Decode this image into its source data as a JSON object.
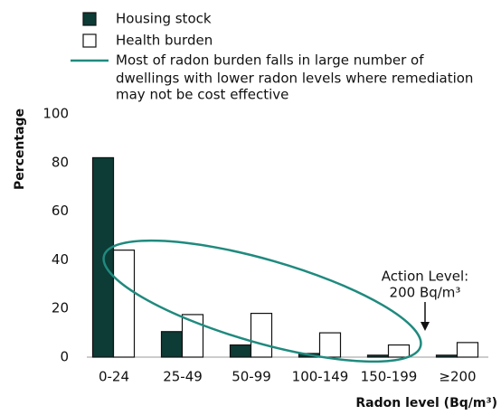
{
  "chart_data": {
    "type": "bar",
    "categories": [
      "0-24",
      "25-49",
      "50-99",
      "100-149",
      "150-199",
      "≥200"
    ],
    "series": [
      {
        "name": "Housing stock",
        "color": "#0d3b36",
        "values": [
          82,
          10.5,
          5,
          1.5,
          0.8,
          0.8
        ]
      },
      {
        "name": "Health burden",
        "color": "#ffffff",
        "values": [
          44,
          17.5,
          18,
          10,
          5,
          6
        ]
      }
    ],
    "ellipse_note": [
      "Most of radon burden falls in large number of",
      "dwellings with lower radon levels where remediation",
      "may not be cost effective"
    ],
    "annotation": [
      "Action Level:",
      "200 Bq/m³"
    ],
    "xlabel": "Radon level (Bq/m³)",
    "ylabel": "Percentage",
    "ylim": [
      0,
      100
    ],
    "yticks": [
      0,
      20,
      40,
      60,
      80,
      100
    ]
  }
}
